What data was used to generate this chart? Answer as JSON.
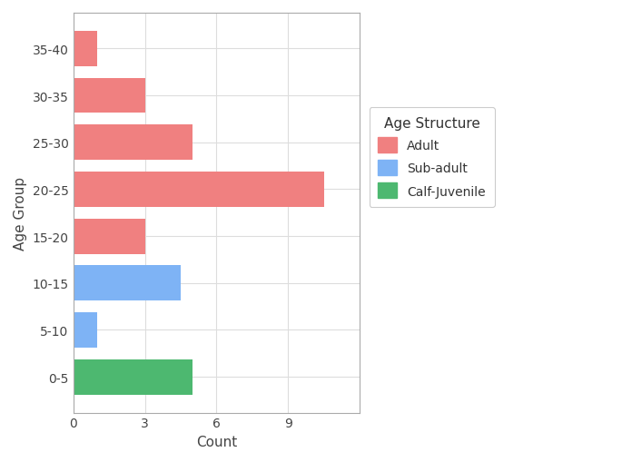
{
  "categories": [
    "0-5",
    "5-10",
    "10-15",
    "15-20",
    "20-25",
    "25-30",
    "30-35",
    "35-40"
  ],
  "values": [
    5,
    1,
    4.5,
    3,
    10.5,
    5,
    3,
    1
  ],
  "colors": [
    "#4DB870",
    "#7EB3F5",
    "#7EB3F5",
    "#F08080",
    "#F08080",
    "#F08080",
    "#F08080",
    "#F08080"
  ],
  "legend_labels": [
    "Adult",
    "Sub-adult",
    "Calf-Juvenile"
  ],
  "legend_colors": [
    "#F08080",
    "#7EB3F5",
    "#4DB870"
  ],
  "xlabel": "Count",
  "ylabel": "Age Group",
  "legend_title": "Age Structure",
  "xlim": [
    0,
    12
  ],
  "xticks": [
    0,
    3,
    6,
    9
  ],
  "background_color": "#ffffff",
  "panel_bg": "#ffffff",
  "grid_color": "#dddddd",
  "axis_fontsize": 11,
  "tick_fontsize": 10,
  "legend_fontsize": 10,
  "legend_title_fontsize": 11
}
